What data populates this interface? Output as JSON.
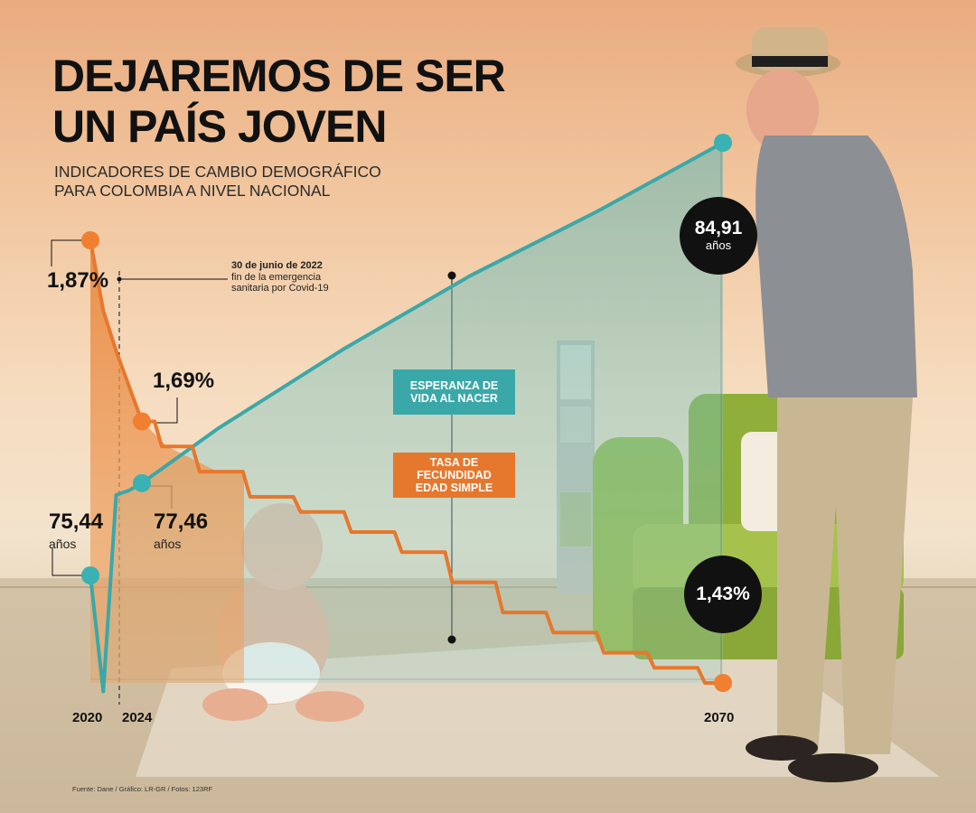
{
  "title_line1": "DEJAREMOS DE SER",
  "title_line2": "UN PAÍS JOVEN",
  "subtitle_line1": "INDICADORES DE CAMBIO DEMOGRÁFICO",
  "subtitle_line2": "PARA COLOMBIA A NIVEL NACIONAL",
  "annotation": {
    "date_bold": "30 de junio de 2022",
    "text": "fin de la emergencia sanitaria por Covid-19"
  },
  "legend": {
    "life_line1": "ESPERANZA DE",
    "life_line2": "VIDA AL NACER",
    "fert_line1": "TASA DE FECUNDIDAD",
    "fert_line2": "EDAD SIMPLE"
  },
  "labels": {
    "fert_2020": "1,87%",
    "fert_2024": "1,69%",
    "life_2020": "75,44",
    "life_2024": "77,46",
    "life_2070": "84,91",
    "fert_2070": "1,43%",
    "unit_years": "años"
  },
  "years": [
    "2020",
    "2024",
    "2070"
  ],
  "source": "Fuente: Dane / Gráfico: LR-GR / Fotos: 123RF",
  "colors": {
    "life_expectancy": "#3aa8a9",
    "fertility": "#e6782d",
    "badge": "#111111",
    "marker_fill_life": "#3ab1b2",
    "marker_fill_fert": "#f07f2f"
  },
  "chart_data": {
    "type": "line",
    "x_range": [
      2020,
      2070
    ],
    "series": [
      {
        "name": "ESPERANZA DE VIDA AL NACER",
        "x": [
          2020,
          2021,
          2022,
          2023,
          2024,
          2030,
          2040,
          2050,
          2060,
          2070
        ],
        "values": [
          75.44,
          72.9,
          77.2,
          77.3,
          77.46,
          78.65,
          80.4,
          82.0,
          83.4,
          84.91
        ]
      },
      {
        "name": "TASA DE FECUNDIDAD EDAD SIMPLE",
        "x": [
          2020,
          2021,
          2022,
          2024,
          2026,
          2030,
          2034,
          2038,
          2042,
          2046,
          2050,
          2054,
          2058,
          2062,
          2066,
          2070
        ],
        "values": [
          1.87,
          1.8,
          1.76,
          1.69,
          1.665,
          1.64,
          1.615,
          1.6,
          1.58,
          1.56,
          1.53,
          1.5,
          1.48,
          1.46,
          1.445,
          1.43
        ]
      }
    ]
  }
}
